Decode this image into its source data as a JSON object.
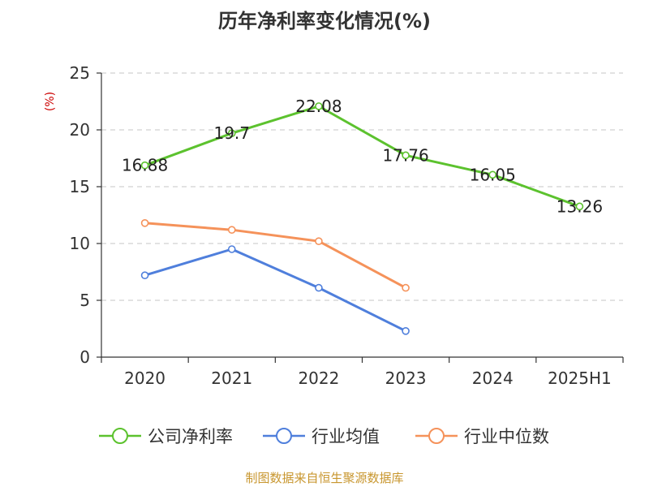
{
  "chart_data": {
    "type": "line",
    "title": "历年净利率变化情况(%)",
    "ylabel": "(%)",
    "xlabel": "",
    "categories": [
      "2020",
      "2021",
      "2022",
      "2023",
      "2024",
      "2025H1"
    ],
    "ylim": [
      0,
      25
    ],
    "yticks": [
      0,
      5,
      10,
      15,
      20,
      25
    ],
    "grid": "horizontal dashed",
    "legend_position": "bottom",
    "series": [
      {
        "name": "公司净利率",
        "color": "#5cc22e",
        "values": [
          16.88,
          19.7,
          22.08,
          17.76,
          16.05,
          13.26
        ],
        "labels": [
          "16.88",
          "19.7",
          "22.08",
          "17.76",
          "16.05",
          "13.26"
        ]
      },
      {
        "name": "行业均值",
        "color": "#4f7fdc",
        "values": [
          7.2,
          9.5,
          6.1,
          2.3,
          null,
          null
        ]
      },
      {
        "name": "行业中位数",
        "color": "#f5925a",
        "values": [
          11.8,
          11.2,
          10.2,
          6.1,
          null,
          null
        ]
      }
    ],
    "source": "制图数据来自恒生聚源数据库"
  }
}
